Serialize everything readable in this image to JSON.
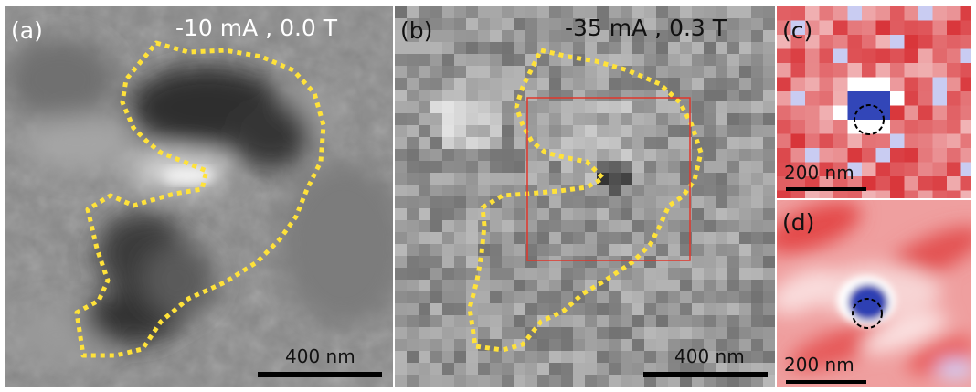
{
  "figure": {
    "panels": [
      {
        "label": "(a)",
        "condition": "-10 mA , 0.0 T",
        "scale_bar": "400 nm"
      },
      {
        "label": "(b)",
        "condition": "-35 mA , 0.3 T",
        "scale_bar": "400 nm"
      },
      {
        "label": "(c)",
        "scale_bar": "200 nm"
      },
      {
        "label": "(d)",
        "scale_bar": "200 nm"
      }
    ],
    "colors": {
      "outline": "#ffe23a",
      "roi_box": "#e0362b",
      "marker_circle": "#000000",
      "map_low": "#2a3fb0",
      "map_high": "#d8262c"
    }
  }
}
